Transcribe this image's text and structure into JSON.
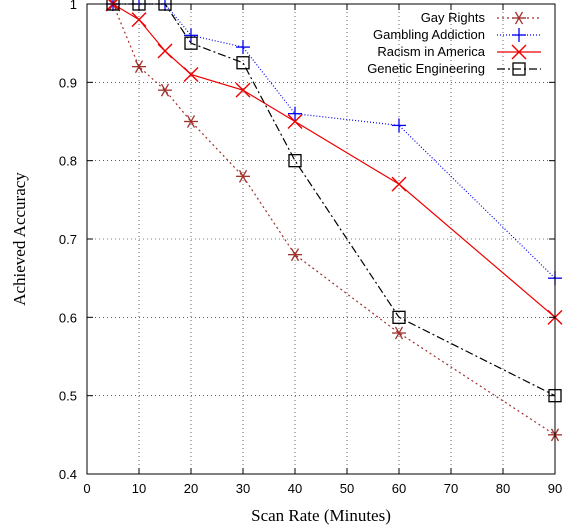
{
  "chart_data": {
    "type": "line",
    "title": "",
    "xlabel": "Scan Rate (Minutes)",
    "ylabel": "Achieved Accuracy",
    "xlim": [
      0,
      90
    ],
    "ylim": [
      0.4,
      1.0
    ],
    "xticks": [
      0,
      10,
      20,
      30,
      40,
      50,
      60,
      70,
      80,
      90
    ],
    "yticks": [
      0.4,
      0.5,
      0.6,
      0.7,
      0.8,
      0.9,
      1.0
    ],
    "xtick_labels": [
      "0",
      "10",
      "20",
      "30",
      "40",
      "50",
      "60",
      "70",
      "80",
      "90"
    ],
    "ytick_labels": [
      "0.4",
      "0.5",
      "0.6",
      "0.7",
      "0.8",
      "0.9",
      "1"
    ],
    "grid": true,
    "legend_position": "top-right",
    "series": [
      {
        "name": "Gay Rights",
        "color": "#a0302a",
        "marker": "asterisk",
        "line_style": "dotted",
        "x": [
          5,
          10,
          15,
          20,
          30,
          40,
          60,
          90
        ],
        "y": [
          1.0,
          0.92,
          0.89,
          0.85,
          0.78,
          0.68,
          0.58,
          0.45
        ]
      },
      {
        "name": "Gambling Addiction",
        "color": "#0000ee",
        "marker": "plus",
        "line_style": "fine-dotted",
        "x": [
          5,
          10,
          15,
          20,
          30,
          40,
          60,
          90
        ],
        "y": [
          1.0,
          1.0,
          1.0,
          0.96,
          0.945,
          0.86,
          0.845,
          0.65
        ]
      },
      {
        "name": "Racism in America",
        "color": "#ee0000",
        "marker": "x",
        "line_style": "solid",
        "x": [
          5,
          10,
          15,
          20,
          30,
          40,
          60,
          90
        ],
        "y": [
          1.0,
          0.98,
          0.94,
          0.91,
          0.89,
          0.85,
          0.77,
          0.6
        ]
      },
      {
        "name": "Genetic Engineering",
        "color": "#000000",
        "marker": "square",
        "line_style": "dash-dot",
        "x": [
          5,
          10,
          15,
          20,
          30,
          40,
          60,
          90
        ],
        "y": [
          1.0,
          1.0,
          1.0,
          0.95,
          0.925,
          0.8,
          0.6,
          0.5
        ]
      }
    ]
  }
}
